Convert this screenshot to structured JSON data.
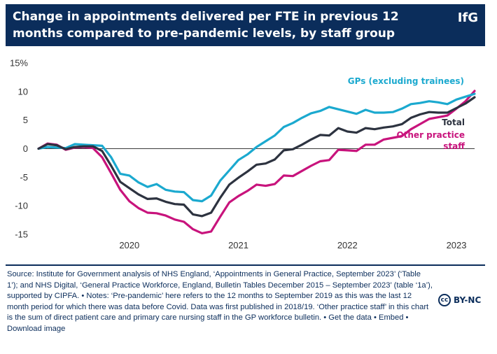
{
  "header": {
    "title": "Change in appointments delivered per FTE in previous 12 months compared to pre-pandemic levels, by staff group",
    "brand": "IfG"
  },
  "chart_data": {
    "type": "line",
    "title": "Change in appointments delivered per FTE in previous 12 months compared to pre-pandemic levels, by staff group",
    "xlabel": "",
    "ylabel": "",
    "ylim": [
      -15,
      15
    ],
    "yticks": [
      "15%",
      "10",
      "5",
      "0",
      "-5",
      "-10",
      "-15"
    ],
    "xticks": [
      "2020",
      "2021",
      "2022",
      "2023"
    ],
    "x_range": [
      "2019-09",
      "2023-09"
    ],
    "grid": false,
    "x": [
      "2019-09",
      "2019-10",
      "2019-11",
      "2019-12",
      "2020-01",
      "2020-02",
      "2020-03",
      "2020-04",
      "2020-05",
      "2020-06",
      "2020-07",
      "2020-08",
      "2020-09",
      "2020-10",
      "2020-11",
      "2020-12",
      "2021-01",
      "2021-02",
      "2021-03",
      "2021-04",
      "2021-05",
      "2021-06",
      "2021-07",
      "2021-08",
      "2021-09",
      "2021-10",
      "2021-11",
      "2021-12",
      "2022-01",
      "2022-02",
      "2022-03",
      "2022-04",
      "2022-05",
      "2022-06",
      "2022-07",
      "2022-08",
      "2022-09",
      "2022-10",
      "2022-11",
      "2022-12",
      "2023-01",
      "2023-02",
      "2023-03",
      "2023-04",
      "2023-05",
      "2023-06",
      "2023-07",
      "2023-08",
      "2023-09"
    ],
    "series": [
      {
        "name": "GPs (excluding trainees)",
        "color": "#1ba9cf",
        "values": [
          0,
          0.3,
          0.2,
          0.1,
          0.8,
          0.7,
          0.6,
          0.5,
          -1.5,
          -4.4,
          -4.7,
          -5.9,
          -6.7,
          -6.2,
          -7.2,
          -7.5,
          -7.6,
          -9.0,
          -9.2,
          -8.2,
          -5.6,
          -3.8,
          -2.0,
          -1.0,
          0.3,
          1.3,
          2.3,
          3.8,
          4.5,
          5.4,
          6.2,
          6.6,
          7.3,
          6.9,
          6.5,
          6.1,
          6.8,
          6.3,
          6.3,
          6.4,
          7.0,
          7.8,
          8.0,
          8.3,
          8.1,
          7.8,
          8.6,
          9.1,
          9.6
        ]
      },
      {
        "name": "Total",
        "color": "#2d3340",
        "values": [
          0,
          0.8,
          0.6,
          -0.1,
          0.3,
          0.4,
          0.4,
          -0.4,
          -3.0,
          -5.8,
          -6.9,
          -8.0,
          -8.8,
          -8.7,
          -9.3,
          -9.7,
          -9.8,
          -11.5,
          -11.8,
          -11.2,
          -8.6,
          -6.3,
          -5.1,
          -4.0,
          -2.8,
          -2.6,
          -1.9,
          -0.3,
          -0.1,
          0.7,
          1.6,
          2.4,
          2.3,
          3.6,
          3.0,
          2.8,
          3.6,
          3.4,
          3.7,
          3.9,
          4.3,
          5.4,
          6.0,
          6.4,
          6.3,
          6.3,
          7.1,
          7.9,
          9.0
        ]
      },
      {
        "name": "Other practice staff",
        "color": "#c8137c",
        "values": [
          0,
          0.9,
          0.7,
          -0.2,
          0.2,
          0.3,
          0.1,
          -1.5,
          -4.3,
          -7.2,
          -9.2,
          -10.4,
          -11.2,
          -11.3,
          -11.7,
          -12.4,
          -12.8,
          -14.1,
          -14.8,
          -14.5,
          -11.9,
          -9.4,
          -8.3,
          -7.4,
          -6.3,
          -6.5,
          -6.2,
          -4.7,
          -4.8,
          -3.9,
          -3.0,
          -2.2,
          -2.0,
          -0.2,
          -0.3,
          -0.4,
          0.7,
          0.7,
          1.6,
          1.9,
          2.2,
          3.4,
          4.3,
          5.2,
          5.5,
          5.8,
          7.0,
          8.3,
          10.1
        ]
      }
    ]
  },
  "footer": {
    "source": "Source: Institute for Government analysis of NHS England, ‘Appointments in General Practice, September 2023’ (‘Table 1’); and NHS Digital, ‘General Practice Workforce, England, Bulletin Tables December 2015 – September 2023’ (table ‘1a’), supported by CIPFA. • Notes: ‘Pre-pandemic’ here refers to the 12 months to September 2019 as this was the last 12 month period for which there was data before Covid. Data was first published in 2018/19. ‘Other practice staff’ in this chart is the sum of direct patient care and primary care nursing staff in the GP workforce bulletin. • Get the data • Embed • Download image",
    "license_icon": "cc-icon",
    "license": "BY-NC"
  }
}
